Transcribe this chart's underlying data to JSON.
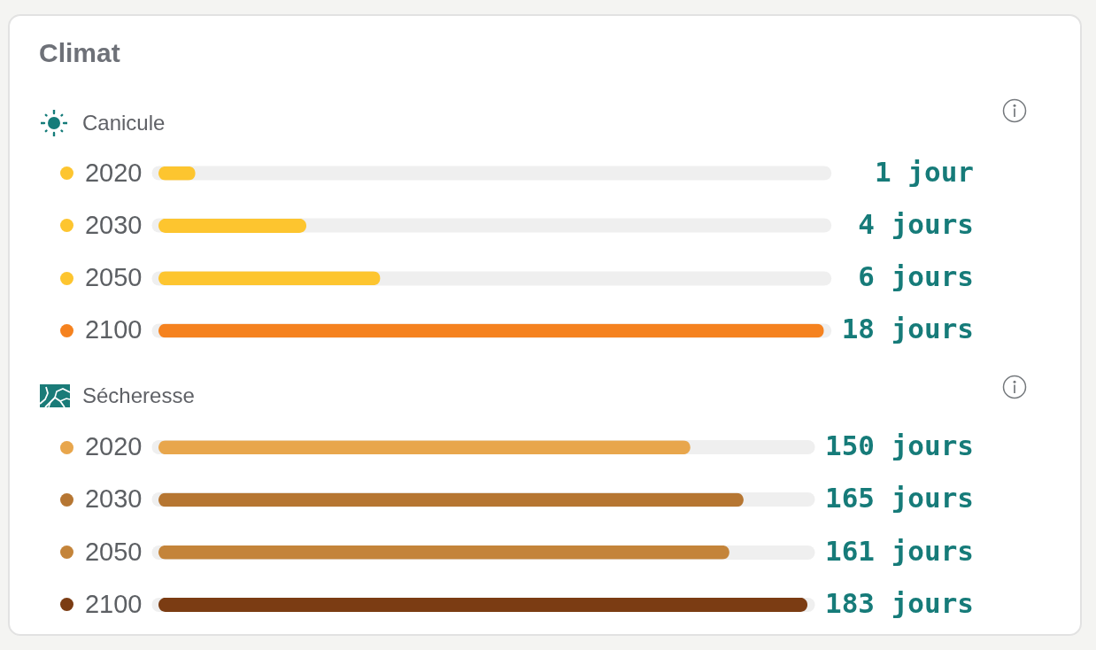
{
  "chart_data": [
    {
      "type": "bar",
      "title": "Climat",
      "subtitle": "Canicule",
      "orientation": "horizontal",
      "categories": [
        "2020",
        "2030",
        "2050",
        "2100"
      ],
      "values": [
        1,
        4,
        6,
        18
      ],
      "colors": [
        "#fdc52f",
        "#fdc52f",
        "#fdc52f",
        "#f5821f"
      ],
      "value_labels": [
        "1 jour",
        "4 jours",
        "6 jours",
        "18 jours"
      ],
      "xlim": [
        0,
        18
      ],
      "grid": "y",
      "tick_labels": "y"
    },
    {
      "type": "bar",
      "subtitle": "Sécheresse",
      "orientation": "horizontal",
      "categories": [
        "2020",
        "2030",
        "2050",
        "2100"
      ],
      "values": [
        150,
        165,
        161,
        183
      ],
      "colors": [
        "#e8a64c",
        "#b67632",
        "#c4843a",
        "#7b3c13"
      ],
      "value_labels": [
        "150 jours",
        "165 jours",
        "161 jours",
        "183 jours"
      ],
      "xlim": [
        0,
        183
      ],
      "grid": "y",
      "tick_labels": "y"
    }
  ]
}
